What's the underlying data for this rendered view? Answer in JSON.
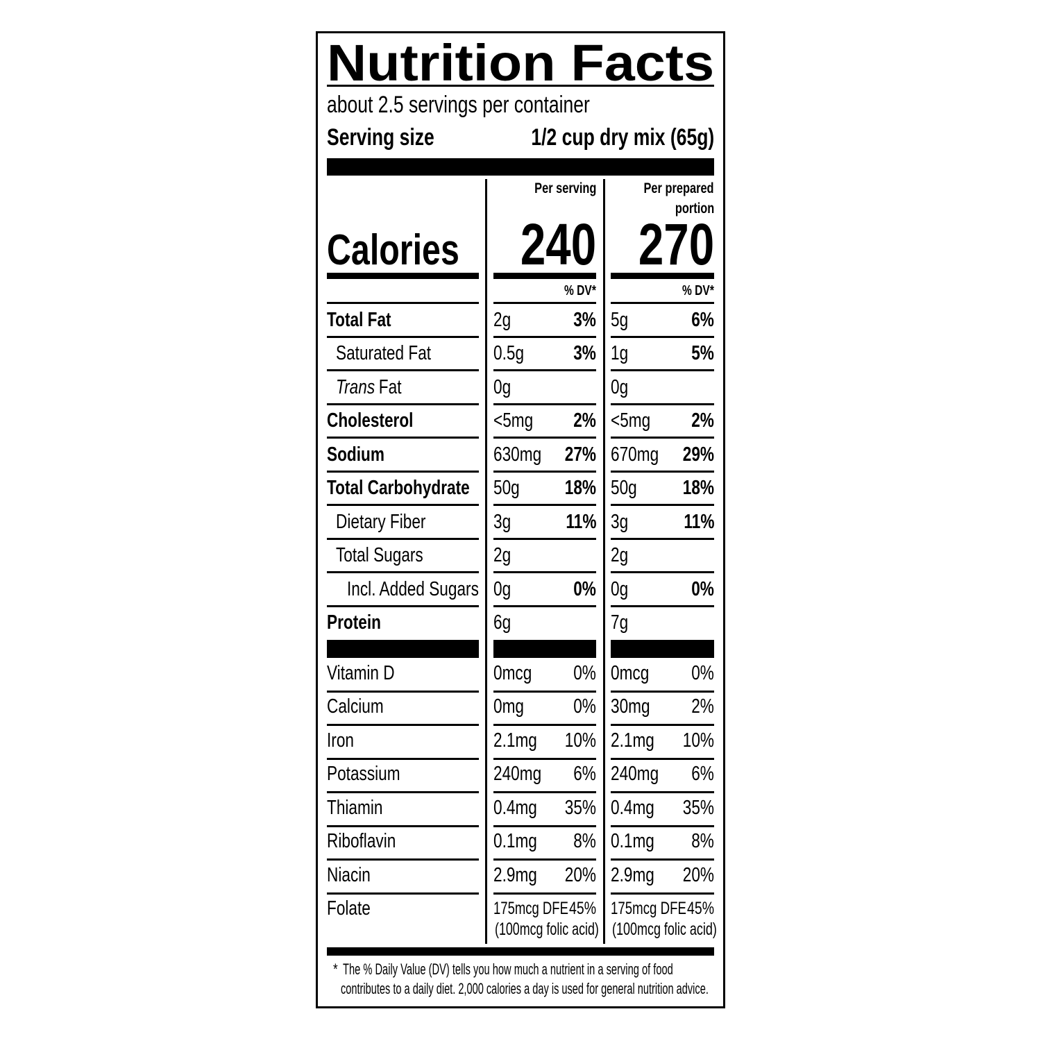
{
  "header": {
    "title": "Nutrition Facts",
    "servings": "about 2.5 servings per container",
    "serving_size_label": "Serving size",
    "serving_size": "1/2 cup dry mix (65g)"
  },
  "columns": [
    [
      "Per serving"
    ],
    [
      "Per prepared",
      "portion"
    ]
  ],
  "calories": {
    "label": "Calories",
    "values": [
      240,
      270
    ]
  },
  "dv_header": "% DV*",
  "nutrients": [
    {
      "name": "Total Fat",
      "bold": true,
      "level": 0,
      "values": [
        [
          "2g",
          "3%"
        ],
        [
          "5g",
          "6%"
        ]
      ]
    },
    {
      "name": "Saturated Fat",
      "bold": false,
      "level": 1,
      "values": [
        [
          "0.5g",
          "3%"
        ],
        [
          "1g",
          "5%"
        ]
      ]
    },
    {
      "name_italic": "Trans",
      "name": "Fat",
      "bold": false,
      "level": 1,
      "values": [
        [
          "0g"
        ],
        [
          "0g"
        ]
      ]
    },
    {
      "name": "Cholesterol",
      "bold": true,
      "level": 0,
      "values": [
        [
          "<5mg",
          "2%"
        ],
        [
          "<5mg",
          "2%"
        ]
      ]
    },
    {
      "name": "Sodium",
      "bold": true,
      "level": 0,
      "values": [
        [
          "630mg",
          "27%"
        ],
        [
          "670mg",
          "29%"
        ]
      ]
    },
    {
      "name": "Total Carbohydrate",
      "bold": true,
      "level": 0,
      "values": [
        [
          "50g",
          "18%"
        ],
        [
          "50g",
          "18%"
        ]
      ]
    },
    {
      "name": "Dietary Fiber",
      "bold": false,
      "level": 1,
      "values": [
        [
          "3g",
          "11%"
        ],
        [
          "3g",
          "11%"
        ]
      ]
    },
    {
      "name": "Total Sugars",
      "bold": false,
      "level": 1,
      "values": [
        [
          "2g"
        ],
        [
          "2g"
        ]
      ]
    },
    {
      "name": "Incl. Added Sugars",
      "bold": false,
      "level": 2,
      "values": [
        [
          "0g",
          "0%"
        ],
        [
          "0g",
          "0%"
        ]
      ]
    },
    {
      "name": "Protein",
      "bold": true,
      "level": 0,
      "values": [
        [
          "6g"
        ],
        [
          "7g"
        ]
      ]
    }
  ],
  "vitamins": [
    {
      "name": "Vitamin D",
      "values": [
        [
          "0mcg",
          "0%"
        ],
        [
          "0mcg",
          "0%"
        ]
      ]
    },
    {
      "name": "Calcium",
      "values": [
        [
          "0mg",
          "0%"
        ],
        [
          "30mg",
          "2%"
        ]
      ]
    },
    {
      "name": "Iron",
      "values": [
        [
          "2.1mg",
          "10%"
        ],
        [
          "2.1mg",
          "10%"
        ]
      ]
    },
    {
      "name": "Potassium",
      "values": [
        [
          "240mg",
          "6%"
        ],
        [
          "240mg",
          "6%"
        ]
      ]
    },
    {
      "name": "Thiamin",
      "values": [
        [
          "0.4mg",
          "35%"
        ],
        [
          "0.4mg",
          "35%"
        ]
      ]
    },
    {
      "name": "Riboflavin",
      "values": [
        [
          "0.1mg",
          "8%"
        ],
        [
          "0.1mg",
          "8%"
        ]
      ]
    },
    {
      "name": "Niacin",
      "values": [
        [
          "2.9mg",
          "20%"
        ],
        [
          "2.9mg",
          "20%"
        ]
      ]
    },
    {
      "name": "Folate",
      "values": [
        [
          "175mcg DFE",
          "45%",
          "(100mcg folic acid)"
        ],
        [
          "175mcg DFE",
          "45%",
          "(100mcg folic acid)"
        ]
      ]
    }
  ],
  "footnote": {
    "mark": "*",
    "lines": [
      "The % Daily Value (DV) tells you how much a nutrient in a serving of food",
      "contributes to a daily diet. 2,000 calories a day is used for general nutrition advice."
    ]
  }
}
